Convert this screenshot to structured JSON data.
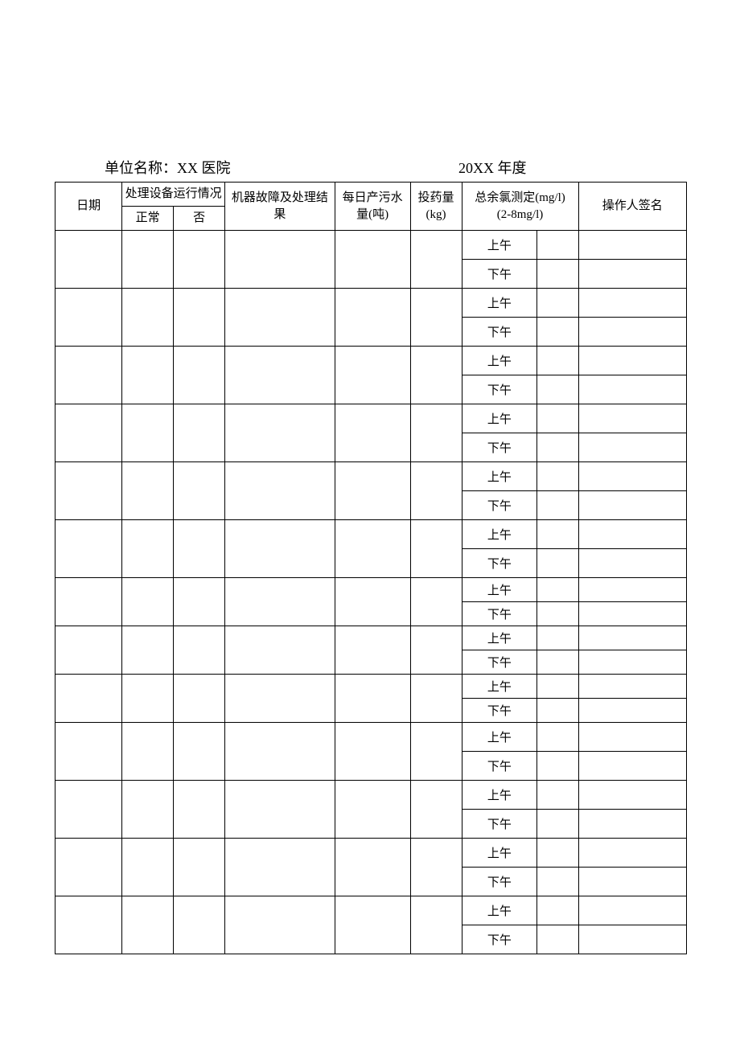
{
  "header": {
    "unit_prefix": "单位名称：",
    "unit_name": "XX 医院",
    "year_prefix": "20XX",
    "year_suffix": " 年度"
  },
  "table": {
    "columns": {
      "date": "日期",
      "equipment_status": "处理设备运行情况",
      "normal": "正常",
      "no": "否",
      "fault_result": "机器故障及处理结果",
      "daily_sewage": "每日产污水量(吨)",
      "dosage": "投药量(kg)",
      "chlorine_line1": "总余氯测定(mg/l)",
      "chlorine_line2": "(2-8mg/l)",
      "operator": "操作人签名"
    },
    "time_labels": {
      "morning": "上午",
      "afternoon": "下午"
    },
    "rows": [
      {
        "date": "",
        "normal": "",
        "no": "",
        "fault": "",
        "daily": "",
        "dosage": "",
        "morning_val": "",
        "afternoon_val": "",
        "morning_op": "",
        "afternoon_op": "",
        "tall": true
      },
      {
        "date": "",
        "normal": "",
        "no": "",
        "fault": "",
        "daily": "",
        "dosage": "",
        "morning_val": "",
        "afternoon_val": "",
        "morning_op": "",
        "afternoon_op": "",
        "tall": true
      },
      {
        "date": "",
        "normal": "",
        "no": "",
        "fault": "",
        "daily": "",
        "dosage": "",
        "morning_val": "",
        "afternoon_val": "",
        "morning_op": "",
        "afternoon_op": "",
        "tall": true
      },
      {
        "date": "",
        "normal": "",
        "no": "",
        "fault": "",
        "daily": "",
        "dosage": "",
        "morning_val": "",
        "afternoon_val": "",
        "morning_op": "",
        "afternoon_op": "",
        "tall": true
      },
      {
        "date": "",
        "normal": "",
        "no": "",
        "fault": "",
        "daily": "",
        "dosage": "",
        "morning_val": "",
        "afternoon_val": "",
        "morning_op": "",
        "afternoon_op": "",
        "tall": true
      },
      {
        "date": "",
        "normal": "",
        "no": "",
        "fault": "",
        "daily": "",
        "dosage": "",
        "morning_val": "",
        "afternoon_val": "",
        "morning_op": "",
        "afternoon_op": "",
        "tall": true
      },
      {
        "date": "",
        "normal": "",
        "no": "",
        "fault": "",
        "daily": "",
        "dosage": "",
        "morning_val": "",
        "afternoon_val": "",
        "morning_op": "",
        "afternoon_op": "",
        "tall": false
      },
      {
        "date": "",
        "normal": "",
        "no": "",
        "fault": "",
        "daily": "",
        "dosage": "",
        "morning_val": "",
        "afternoon_val": "",
        "morning_op": "",
        "afternoon_op": "",
        "tall": false
      },
      {
        "date": "",
        "normal": "",
        "no": "",
        "fault": "",
        "daily": "",
        "dosage": "",
        "morning_val": "",
        "afternoon_val": "",
        "morning_op": "",
        "afternoon_op": "",
        "tall": false
      },
      {
        "date": "",
        "normal": "",
        "no": "",
        "fault": "",
        "daily": "",
        "dosage": "",
        "morning_val": "",
        "afternoon_val": "",
        "morning_op": "",
        "afternoon_op": "",
        "tall": true
      },
      {
        "date": "",
        "normal": "",
        "no": "",
        "fault": "",
        "daily": "",
        "dosage": "",
        "morning_val": "",
        "afternoon_val": "",
        "morning_op": "",
        "afternoon_op": "",
        "tall": true
      },
      {
        "date": "",
        "normal": "",
        "no": "",
        "fault": "",
        "daily": "",
        "dosage": "",
        "morning_val": "",
        "afternoon_val": "",
        "morning_op": "",
        "afternoon_op": "",
        "tall": true
      },
      {
        "date": "",
        "normal": "",
        "no": "",
        "fault": "",
        "daily": "",
        "dosage": "",
        "morning_val": "",
        "afternoon_val": "",
        "morning_op": "",
        "afternoon_op": "",
        "tall": true
      }
    ],
    "styling": {
      "border_color": "#000000",
      "background_color": "#ffffff",
      "font_size_header": 15,
      "font_size_body": 14,
      "col_widths": {
        "date": 78,
        "normal": 60,
        "no": 60,
        "fault": 128,
        "daily": 88,
        "dosage": 60,
        "chlorine_label": 88,
        "chlorine_val": 48,
        "operator": 126
      }
    }
  }
}
